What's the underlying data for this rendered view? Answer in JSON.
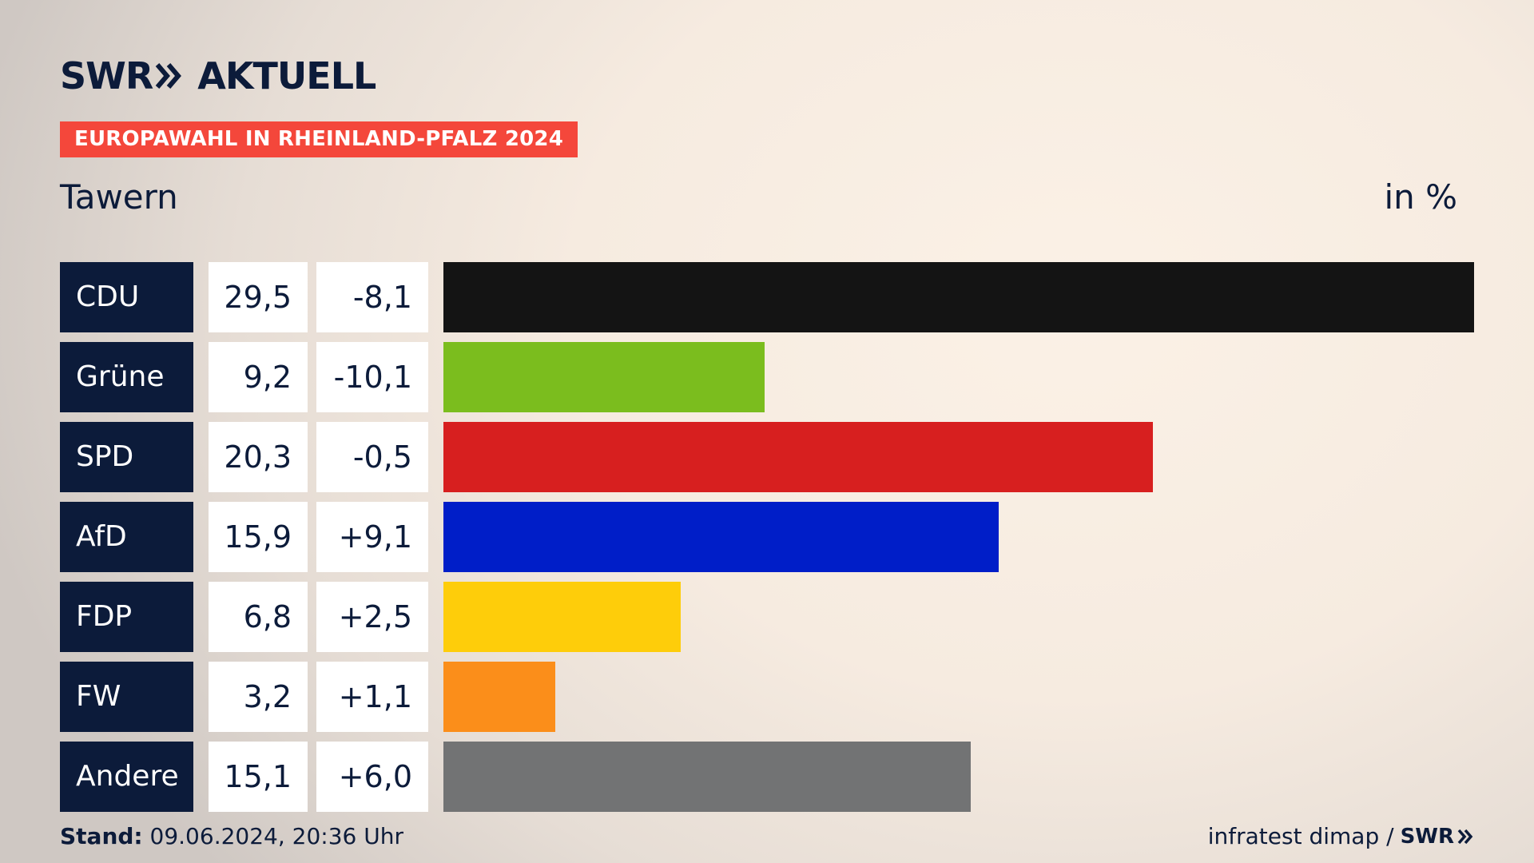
{
  "brand": {
    "logo_text": "SWR",
    "section": "AKTUELL",
    "logo_icon": "double-chevron-right-icon"
  },
  "banner": "EUROPAWAHL IN RHEINLAND-PFALZ 2024",
  "place": "Tawern",
  "unit_label": "in %",
  "footer": {
    "stand_label": "Stand:",
    "stand_value": "09.06.2024, 20:36 Uhr",
    "source": "infratest dimap /",
    "source_logo": "SWR"
  },
  "chart_data": {
    "type": "bar",
    "orientation": "horizontal",
    "categories": [
      "CDU",
      "Grüne",
      "SPD",
      "AfD",
      "FDP",
      "FW",
      "Andere"
    ],
    "values": [
      29.5,
      9.2,
      20.3,
      15.9,
      6.8,
      3.2,
      15.1
    ],
    "value_labels": [
      "29,5",
      "9,2",
      "20,3",
      "15,9",
      "6,8",
      "3,2",
      "15,1"
    ],
    "changes": [
      -8.1,
      -10.1,
      -0.5,
      9.1,
      2.5,
      1.1,
      6.0
    ],
    "change_labels": [
      "-8,1",
      "-10,1",
      "-0,5",
      "+9,1",
      "+2,5",
      "+1,1",
      "+6,0"
    ],
    "colors": [
      "#141414",
      "#7bbd1e",
      "#d71f1f",
      "#001ec8",
      "#fecd0a",
      "#fb8e1a",
      "#727374"
    ],
    "xlim": [
      0,
      29.5
    ]
  }
}
